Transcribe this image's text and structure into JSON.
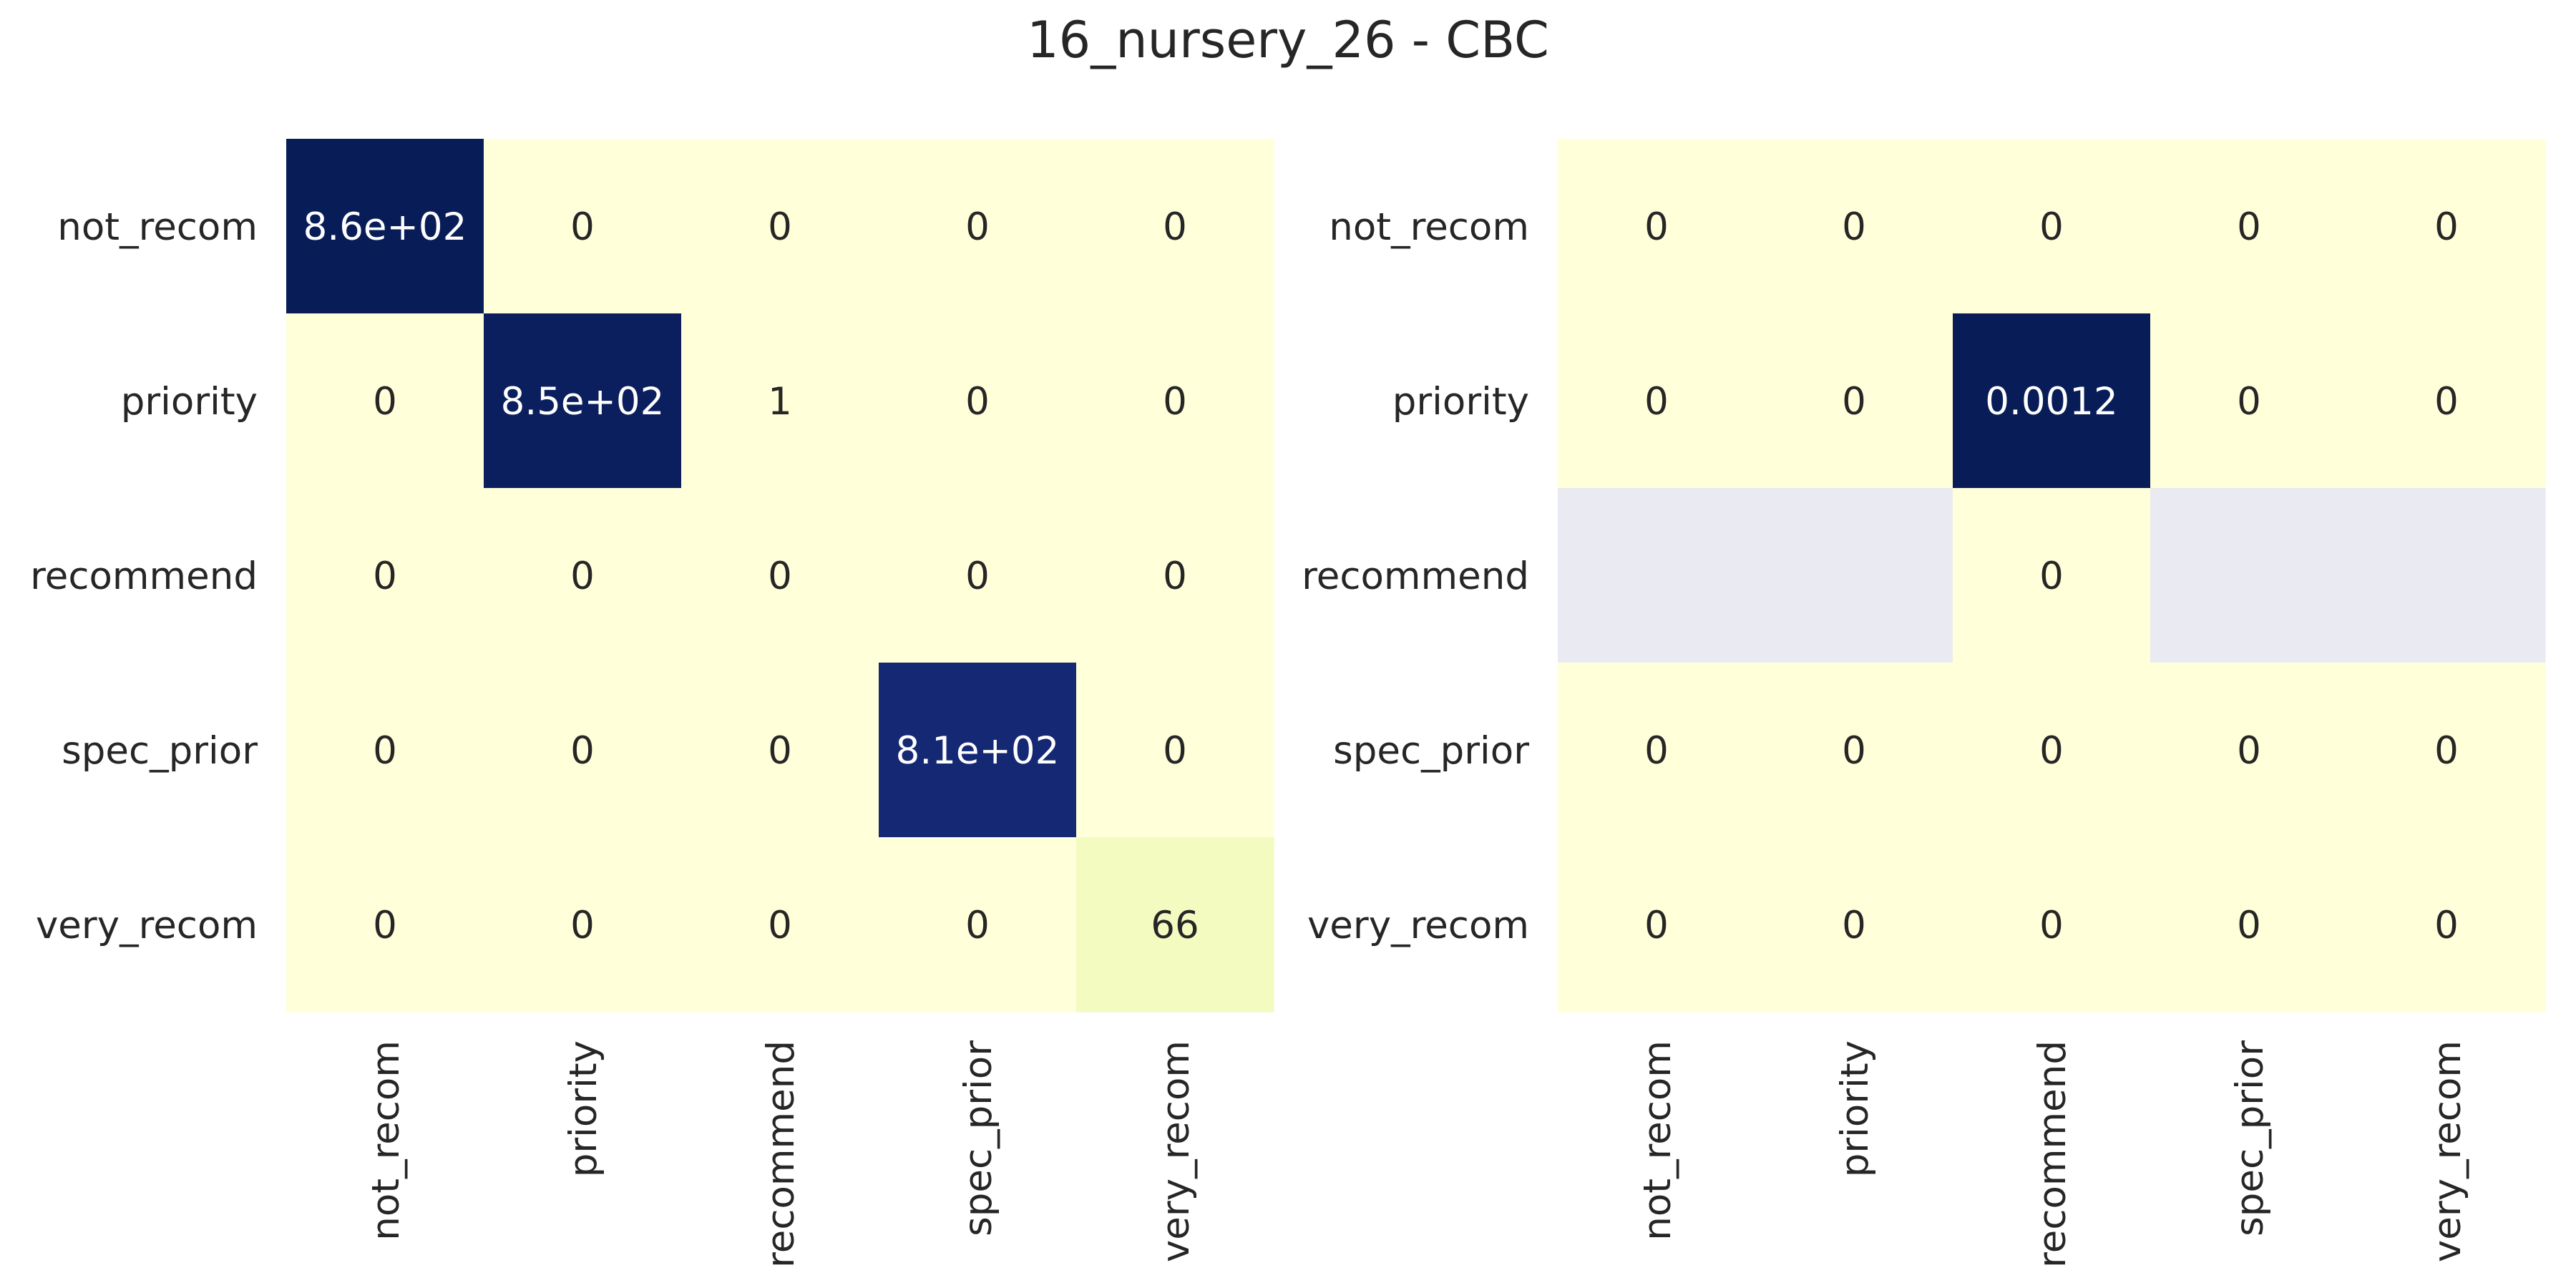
{
  "title": "16_nursery_26 - CBC",
  "colors": {
    "low": "#ffffd9",
    "high": "#081d58",
    "nan": "#eaeaf2",
    "text_dark": "#262626",
    "text_light": "#ffffff"
  },
  "chart_data": [
    {
      "type": "heatmap",
      "colormap": "YlGnBu",
      "row_labels": [
        "not_recom",
        "priority",
        "recommend",
        "spec_prior",
        "very_recom"
      ],
      "col_labels": [
        "not_recom",
        "priority",
        "recommend",
        "spec_prior",
        "very_recom"
      ],
      "values": [
        [
          860,
          0,
          0,
          0,
          0
        ],
        [
          0,
          850,
          1,
          0,
          0
        ],
        [
          0,
          0,
          0,
          0,
          0
        ],
        [
          0,
          0,
          0,
          810,
          0
        ],
        [
          0,
          0,
          0,
          0,
          66
        ]
      ],
      "annotations": [
        [
          "8.6e+02",
          "0",
          "0",
          "0",
          "0"
        ],
        [
          "0",
          "8.5e+02",
          "1",
          "0",
          "0"
        ],
        [
          "0",
          "0",
          "0",
          "0",
          "0"
        ],
        [
          "0",
          "0",
          "0",
          "8.1e+02",
          "0"
        ],
        [
          "0",
          "0",
          "0",
          "0",
          "66"
        ]
      ],
      "vmin": 0,
      "vmax": 860,
      "colorbar": false
    },
    {
      "type": "heatmap",
      "colormap": "YlGnBu",
      "row_labels": [
        "not_recom",
        "priority",
        "recommend",
        "spec_prior",
        "very_recom"
      ],
      "col_labels": [
        "not_recom",
        "priority",
        "recommend",
        "spec_prior",
        "very_recom"
      ],
      "values": [
        [
          0,
          0,
          0,
          0,
          0
        ],
        [
          0,
          0,
          0.0012,
          0,
          0
        ],
        [
          null,
          null,
          0,
          null,
          null
        ],
        [
          0,
          0,
          0,
          0,
          0
        ],
        [
          0,
          0,
          0,
          0,
          0
        ]
      ],
      "annotations": [
        [
          "0",
          "0",
          "0",
          "0",
          "0"
        ],
        [
          "0",
          "0",
          "0.0012",
          "0",
          "0"
        ],
        [
          "",
          "",
          "0",
          "",
          ""
        ],
        [
          "0",
          "0",
          "0",
          "0",
          "0"
        ],
        [
          "0",
          "0",
          "0",
          "0",
          "0"
        ]
      ],
      "vmin": 0,
      "vmax": 0.0012,
      "colorbar": false
    }
  ]
}
